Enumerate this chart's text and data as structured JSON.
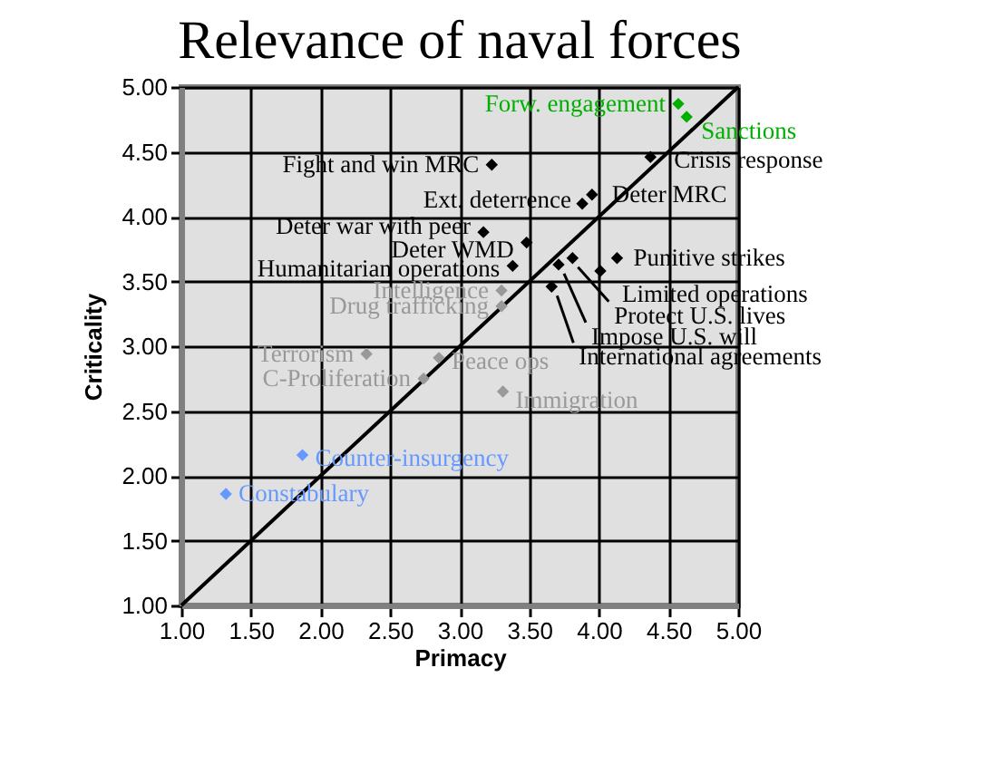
{
  "chart_data": {
    "type": "scatter",
    "title": "Relevance of naval forces",
    "xlabel": "Primacy",
    "ylabel": "Criticality",
    "xlim": [
      1,
      5
    ],
    "ylim": [
      1,
      5
    ],
    "xticks": [
      {
        "value": 1,
        "label": "1.00"
      },
      {
        "value": 1.5,
        "label": "1.50"
      },
      {
        "value": 2,
        "label": "2.00"
      },
      {
        "value": 2.5,
        "label": "2.50"
      },
      {
        "value": 3,
        "label": "3.00"
      },
      {
        "value": 3.5,
        "label": "3.50"
      },
      {
        "value": 4,
        "label": "4.00"
      },
      {
        "value": 4.5,
        "label": "4.50"
      },
      {
        "value": 5,
        "label": "5.00"
      }
    ],
    "yticks": [
      {
        "value": 1,
        "label": "1.00"
      },
      {
        "value": 1.5,
        "label": "1.50"
      },
      {
        "value": 2,
        "label": "2.00"
      },
      {
        "value": 2.5,
        "label": "2.50"
      },
      {
        "value": 3,
        "label": "3.00"
      },
      {
        "value": 3.5,
        "label": "3.50"
      },
      {
        "value": 4,
        "label": "4.00"
      },
      {
        "value": 4.5,
        "label": "4.50"
      },
      {
        "value": 5,
        "label": "5.00"
      }
    ],
    "grid": true,
    "marker": "diamond",
    "series": [
      {
        "color": "#000000",
        "x": [
          3.23,
          3.17,
          3.48,
          3.38,
          3.88,
          3.95,
          4.37,
          4.13,
          4.01,
          3.81,
          3.71,
          3.66
        ],
        "values": [
          4.4,
          3.88,
          3.8,
          3.62,
          4.1,
          4.17,
          4.46,
          3.68,
          3.58,
          3.68,
          3.63,
          3.46
        ],
        "value_labels": [
          "Fight and win MRC",
          "Deter war with peer",
          "Deter WMD",
          "Humanitarian operations",
          "Ext. deterrence",
          "Deter MRC",
          "Crisis response",
          "Punitive strikes",
          "Limited operations",
          "Protect U.S. lives",
          "Impose U.S. will",
          "International agreements"
        ]
      },
      {
        "color": "#999999",
        "x": [
          3.3,
          3.3,
          2.33,
          2.74,
          2.85,
          3.31
        ],
        "values": [
          3.43,
          3.31,
          2.94,
          2.75,
          2.91,
          2.65
        ],
        "value_labels": [
          "Intelligence",
          "Drug trafficking",
          "Terrorism",
          "C-Proliferation",
          "Peace ops",
          "Immigration"
        ]
      },
      {
        "color": "#6699ff",
        "x": [
          1.87,
          1.32
        ],
        "values": [
          2.16,
          1.86
        ],
        "value_labels": [
          "Counter-insurgency",
          "Constabulary"
        ]
      },
      {
        "color": "#00b000",
        "x": [
          4.57,
          4.63
        ],
        "values": [
          4.87,
          4.77
        ],
        "value_labels": [
          "Forw. engagement",
          "Sanctions"
        ]
      },
      {
        "type": "line",
        "color": "#000000",
        "x": [
          1,
          5
        ],
        "values": [
          1,
          5
        ],
        "line_style": "solid",
        "marker": "none"
      }
    ]
  }
}
